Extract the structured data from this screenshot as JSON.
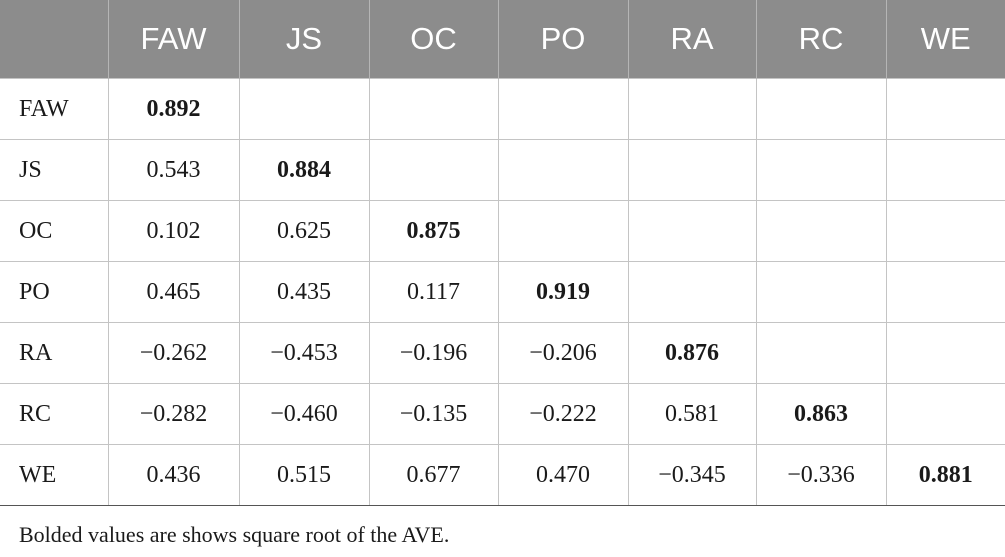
{
  "table": {
    "header": [
      "",
      "FAW",
      "JS",
      "OC",
      "PO",
      "RA",
      "RC",
      "WE"
    ],
    "rows": [
      {
        "label": "FAW",
        "cells": [
          "0.892",
          "",
          "",
          "",
          "",
          "",
          ""
        ],
        "bold_index": 0
      },
      {
        "label": "JS",
        "cells": [
          "0.543",
          "0.884",
          "",
          "",
          "",
          "",
          ""
        ],
        "bold_index": 1
      },
      {
        "label": "OC",
        "cells": [
          "0.102",
          "0.625",
          "0.875",
          "",
          "",
          "",
          ""
        ],
        "bold_index": 2
      },
      {
        "label": "PO",
        "cells": [
          "0.465",
          "0.435",
          "0.117",
          "0.919",
          "",
          "",
          ""
        ],
        "bold_index": 3
      },
      {
        "label": "RA",
        "cells": [
          "−0.262",
          "−0.453",
          "−0.196",
          "−0.206",
          "0.876",
          "",
          ""
        ],
        "bold_index": 4
      },
      {
        "label": "RC",
        "cells": [
          "−0.282",
          "−0.460",
          "−0.135",
          "−0.222",
          "0.581",
          "0.863",
          ""
        ],
        "bold_index": 5
      },
      {
        "label": "WE",
        "cells": [
          "0.436",
          "0.515",
          "0.677",
          "0.470",
          "−0.345",
          "−0.336",
          "0.881"
        ],
        "bold_index": 6
      }
    ]
  },
  "footnote": "Bolded values are shows square root of the AVE.",
  "colors": {
    "header_bg": "#8c8c8c",
    "header_text": "#ffffff",
    "grid": "#c4c4c4"
  }
}
